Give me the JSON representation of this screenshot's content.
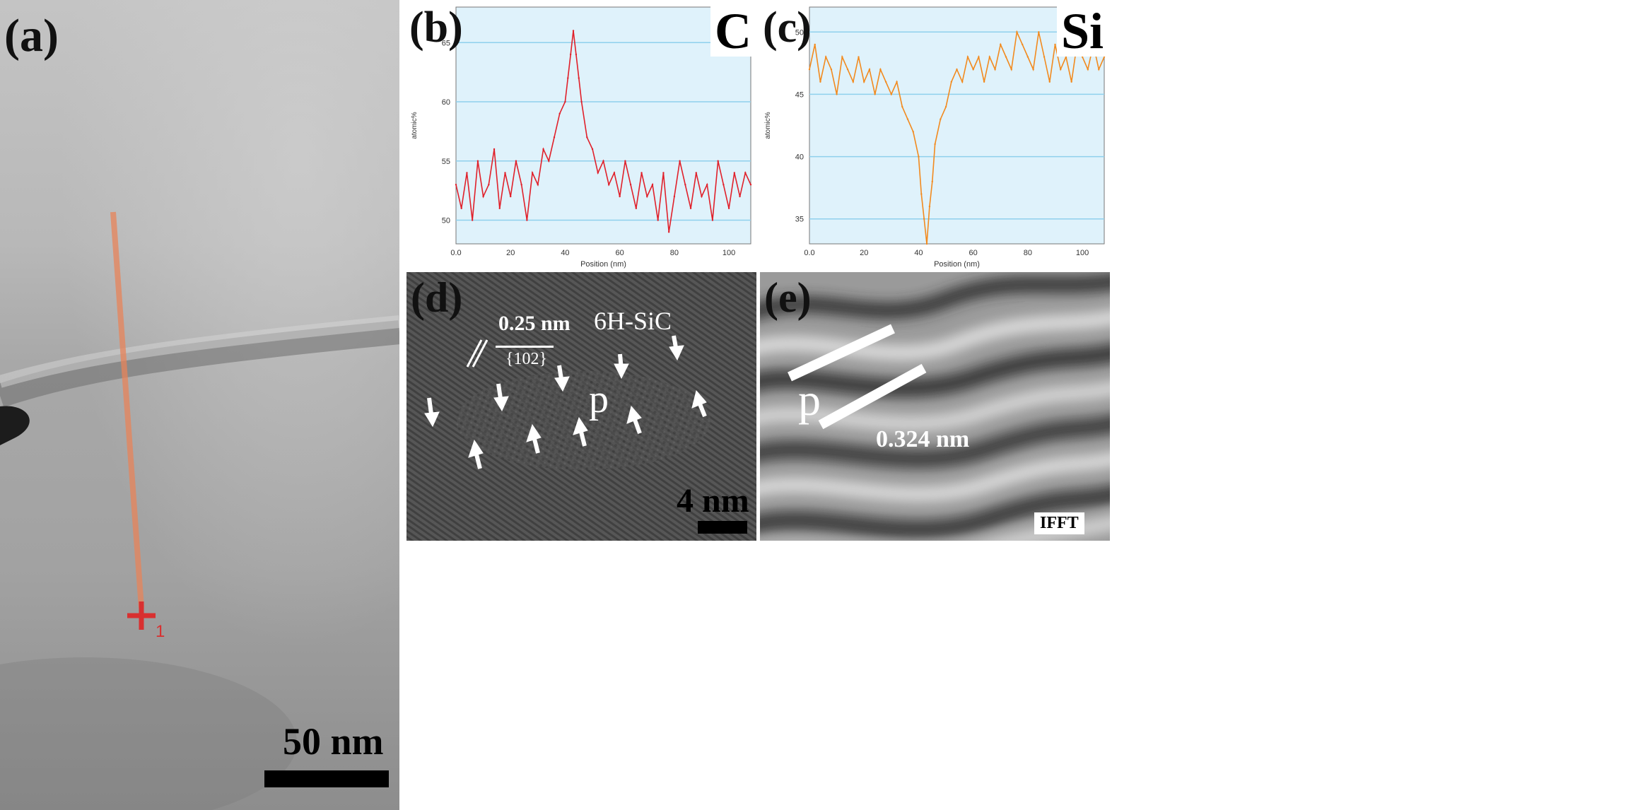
{
  "panels": {
    "a": {
      "label": "(a)",
      "scale_bar": "50 nm",
      "marker": "1"
    },
    "b": {
      "label": "(b)",
      "element": "C"
    },
    "c": {
      "label": "(c)",
      "element": "Si"
    },
    "d": {
      "label": "(d)",
      "spacing": "0.25 nm",
      "plane": "{102}",
      "phase": "6H-SiC",
      "precipitate": "p",
      "scale_bar": "4 nm"
    },
    "e": {
      "label": "(e)",
      "precipitate": "p",
      "spacing": "0.324 nm",
      "tag": "IFFT"
    }
  },
  "colors": {
    "c_line": "#e0202a",
    "si_line": "#f28a1e",
    "plot_bg": "#dff2fb",
    "grid": "#8fd0ec",
    "line_scan": "#e8845a"
  },
  "chart_data": [
    {
      "type": "line",
      "title": "",
      "element_label": "C",
      "xlabel": "Position (nm)",
      "ylabel": "atomic%",
      "xlim": [
        0,
        108
      ],
      "ylim": [
        48,
        68
      ],
      "xticks": [
        "0.0",
        "20",
        "40",
        "60",
        "80",
        "100"
      ],
      "yticks": [
        "50",
        "55",
        "60",
        "65"
      ],
      "grid": true,
      "series": [
        {
          "color": "#e0202a",
          "x": [
            0,
            2,
            4,
            6,
            8,
            10,
            12,
            14,
            16,
            18,
            20,
            22,
            24,
            26,
            28,
            30,
            32,
            34,
            36,
            38,
            40,
            41,
            42,
            43,
            44,
            45,
            46,
            48,
            50,
            52,
            54,
            56,
            58,
            60,
            62,
            64,
            66,
            68,
            70,
            72,
            74,
            76,
            78,
            80,
            82,
            84,
            86,
            88,
            90,
            92,
            94,
            96,
            98,
            100,
            102,
            104,
            106,
            108
          ],
          "y": [
            53,
            51,
            54,
            50,
            55,
            52,
            53,
            56,
            51,
            54,
            52,
            55,
            53,
            50,
            54,
            53,
            56,
            55,
            57,
            59,
            60,
            62,
            64,
            66,
            64,
            62,
            60,
            57,
            56,
            54,
            55,
            53,
            54,
            52,
            55,
            53,
            51,
            54,
            52,
            53,
            50,
            54,
            49,
            52,
            55,
            53,
            51,
            54,
            52,
            53,
            50,
            55,
            53,
            51,
            54,
            52,
            54,
            53
          ]
        }
      ]
    },
    {
      "type": "line",
      "title": "",
      "element_label": "Si",
      "xlabel": "Position (nm)",
      "ylabel": "atomic%",
      "xlim": [
        0,
        108
      ],
      "ylim": [
        33,
        52
      ],
      "xticks": [
        "0.0",
        "20",
        "40",
        "60",
        "80",
        "100"
      ],
      "yticks": [
        "35",
        "40",
        "45",
        "50"
      ],
      "grid": true,
      "series": [
        {
          "color": "#f28a1e",
          "x": [
            0,
            2,
            4,
            6,
            8,
            10,
            12,
            14,
            16,
            18,
            20,
            22,
            24,
            26,
            28,
            30,
            32,
            34,
            36,
            38,
            40,
            41,
            42,
            43,
            44,
            45,
            46,
            48,
            50,
            52,
            54,
            56,
            58,
            60,
            62,
            64,
            66,
            68,
            70,
            72,
            74,
            76,
            78,
            80,
            82,
            84,
            86,
            88,
            90,
            92,
            94,
            96,
            98,
            100,
            102,
            104,
            106,
            108
          ],
          "y": [
            47,
            49,
            46,
            48,
            47,
            45,
            48,
            47,
            46,
            48,
            46,
            47,
            45,
            47,
            46,
            45,
            46,
            44,
            43,
            42,
            40,
            37,
            35,
            33,
            36,
            38,
            41,
            43,
            44,
            46,
            47,
            46,
            48,
            47,
            48,
            46,
            48,
            47,
            49,
            48,
            47,
            50,
            49,
            48,
            47,
            50,
            48,
            46,
            49,
            47,
            48,
            46,
            49,
            48,
            47,
            49,
            47,
            48
          ]
        }
      ]
    }
  ]
}
